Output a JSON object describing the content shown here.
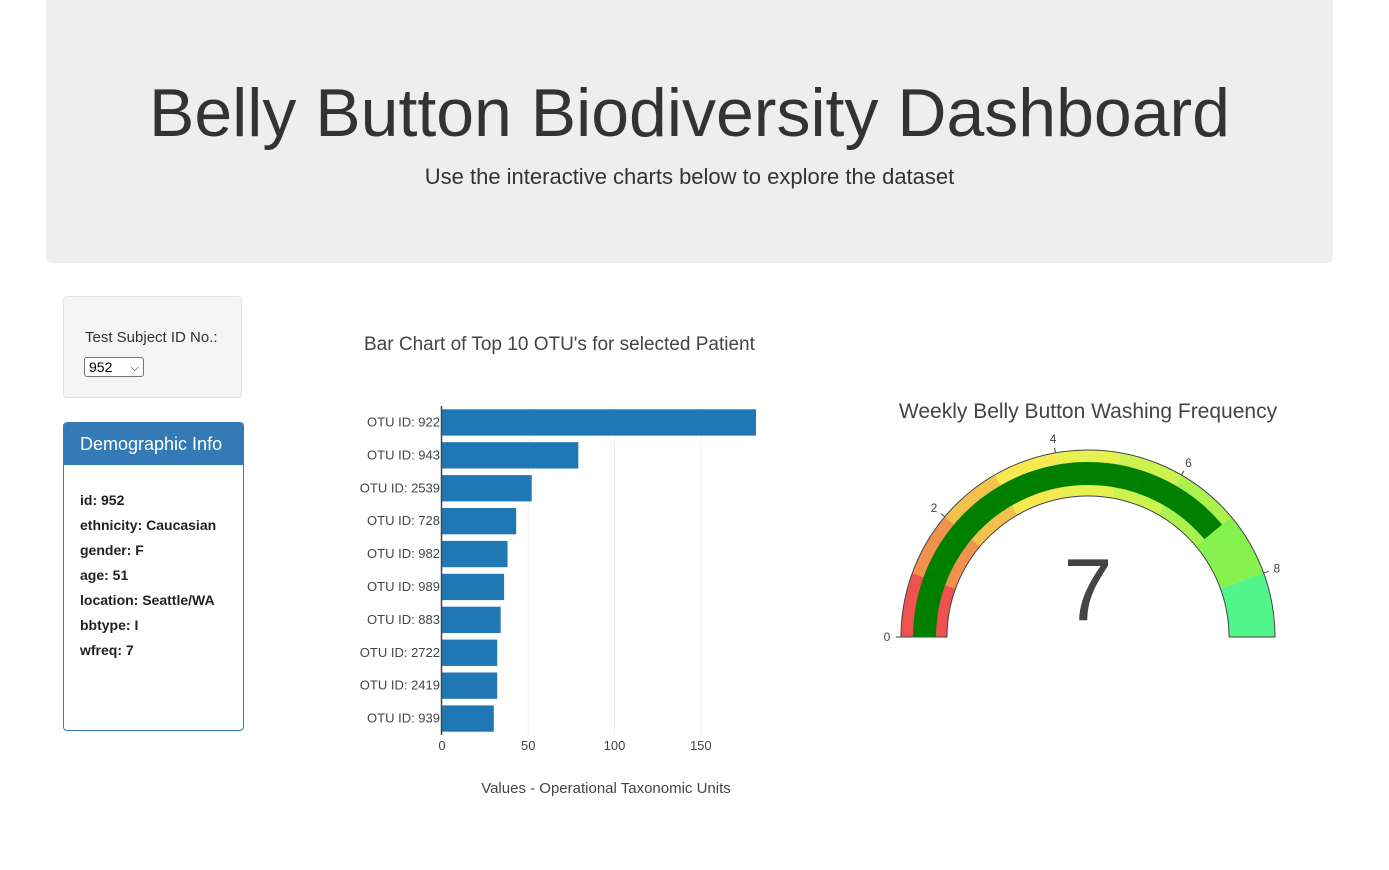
{
  "header": {
    "title": "Belly Button Biodiversity Dashboard",
    "subtitle": "Use the interactive charts below to explore the dataset"
  },
  "selector": {
    "label": "Test Subject ID No.:",
    "selected": "952"
  },
  "demographics": {
    "heading": "Demographic Info",
    "lines": [
      "id: 952",
      "ethnicity: Caucasian",
      "gender: F",
      "age: 51",
      "location: Seattle/WA",
      "bbtype: I",
      "wfreq: 7"
    ]
  },
  "chart_data": [
    {
      "type": "bar",
      "orientation": "horizontal",
      "title": "Bar Chart of Top 10 OTU's for selected Patient",
      "xlabel": "Values - Operational Taxonomic Units",
      "ylabel": "",
      "categories": [
        "OTU ID: 922",
        "OTU ID: 943",
        "OTU ID: 2539",
        "OTU ID: 728",
        "OTU ID: 982",
        "OTU ID: 989",
        "OTU ID: 883",
        "OTU ID: 2722",
        "OTU ID: 2419",
        "OTU ID: 939"
      ],
      "values": [
        182,
        79,
        52,
        43,
        38,
        36,
        34,
        32,
        32,
        30
      ],
      "xlim": [
        0,
        182
      ],
      "xticks": [
        "0",
        "50",
        "100",
        "150"
      ],
      "xtick_values": [
        0,
        50,
        100,
        150
      ],
      "grid": true,
      "bar_color": "#1f77b4"
    },
    {
      "type": "gauge",
      "title": "Weekly Belly Button Washing Frequency",
      "value": 7,
      "value_label": "7",
      "range": [
        0,
        9
      ],
      "ticks": [
        "0",
        "2",
        "4",
        "6",
        "8"
      ],
      "tick_values": [
        0,
        2,
        4,
        6,
        8
      ],
      "bar_color": "#008000",
      "steps": [
        {
          "range": [
            0,
            1
          ],
          "color": "#ef5350"
        },
        {
          "range": [
            1,
            2
          ],
          "color": "#f0914e"
        },
        {
          "range": [
            2,
            3
          ],
          "color": "#f2c24c"
        },
        {
          "range": [
            3,
            4
          ],
          "color": "#f5e94f"
        },
        {
          "range": [
            4,
            5
          ],
          "color": "#e6f050"
        },
        {
          "range": [
            5,
            6
          ],
          "color": "#ccf24f"
        },
        {
          "range": [
            6,
            7
          ],
          "color": "#acf24e"
        },
        {
          "range": [
            7,
            8
          ],
          "color": "#86f24f"
        },
        {
          "range": [
            8,
            9
          ],
          "color": "#52f58a"
        }
      ]
    }
  ]
}
